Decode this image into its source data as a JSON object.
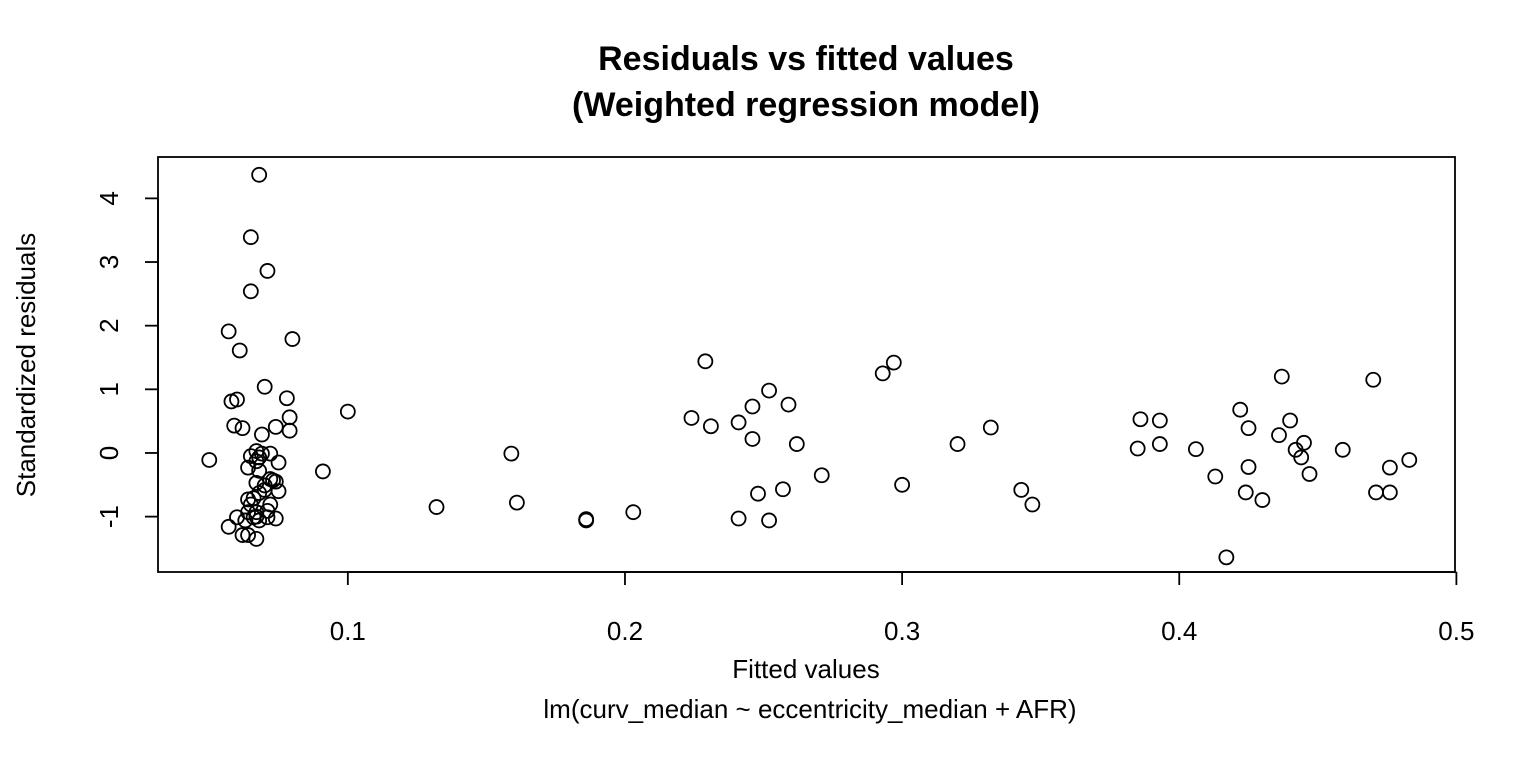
{
  "chart_data": {
    "type": "scatter",
    "title": "Residuals vs fitted values",
    "subtitle": "(Weighted regression model)",
    "xlabel": "Fitted values",
    "xsublabel": "lm(curv_median ~ eccentricity_median + AFR)",
    "ylabel": "Standardized residuals",
    "xlim": [
      0.0315,
      0.4995
    ],
    "ylim": [
      -1.87,
      4.65
    ],
    "x_ticks": [
      0.1,
      0.2,
      0.3,
      0.4,
      0.5
    ],
    "x_tick_labels": [
      "0.1",
      "0.2",
      "0.3",
      "0.4",
      "0.5"
    ],
    "y_ticks": [
      -1,
      0,
      1,
      2,
      3,
      4
    ],
    "y_tick_labels": [
      "-1",
      "0",
      "1",
      "2",
      "3",
      "4"
    ],
    "grid": false,
    "legend": "none",
    "marker": "open-circle",
    "points": [
      {
        "x": 0.05,
        "y": -0.11
      },
      {
        "x": 0.057,
        "y": -1.16
      },
      {
        "x": 0.057,
        "y": 1.91
      },
      {
        "x": 0.058,
        "y": 0.81
      },
      {
        "x": 0.059,
        "y": 0.43
      },
      {
        "x": 0.06,
        "y": 0.84
      },
      {
        "x": 0.06,
        "y": -1.01
      },
      {
        "x": 0.061,
        "y": 1.61
      },
      {
        "x": 0.062,
        "y": -1.29
      },
      {
        "x": 0.062,
        "y": 0.39
      },
      {
        "x": 0.063,
        "y": -1.06
      },
      {
        "x": 0.064,
        "y": -0.23
      },
      {
        "x": 0.064,
        "y": -1.29
      },
      {
        "x": 0.064,
        "y": -0.73
      },
      {
        "x": 0.064,
        "y": -0.93
      },
      {
        "x": 0.065,
        "y": 3.39
      },
      {
        "x": 0.065,
        "y": -0.05
      },
      {
        "x": 0.065,
        "y": -0.81
      },
      {
        "x": 0.065,
        "y": 2.54
      },
      {
        "x": 0.066,
        "y": -0.71
      },
      {
        "x": 0.066,
        "y": -1.01
      },
      {
        "x": 0.067,
        "y": -0.13
      },
      {
        "x": 0.067,
        "y": -1.0
      },
      {
        "x": 0.067,
        "y": -0.93
      },
      {
        "x": 0.067,
        "y": -1.35
      },
      {
        "x": 0.067,
        "y": -0.47
      },
      {
        "x": 0.067,
        "y": 0.03
      },
      {
        "x": 0.068,
        "y": -0.28
      },
      {
        "x": 0.068,
        "y": -0.63
      },
      {
        "x": 0.068,
        "y": 4.37
      },
      {
        "x": 0.068,
        "y": -1.06
      },
      {
        "x": 0.068,
        "y": -0.07
      },
      {
        "x": 0.069,
        "y": -0.01
      },
      {
        "x": 0.069,
        "y": 0.29
      },
      {
        "x": 0.07,
        "y": -0.51
      },
      {
        "x": 0.07,
        "y": -0.58
      },
      {
        "x": 0.07,
        "y": 1.04
      },
      {
        "x": 0.071,
        "y": 2.86
      },
      {
        "x": 0.071,
        "y": -0.91
      },
      {
        "x": 0.071,
        "y": -1.01
      },
      {
        "x": 0.072,
        "y": -0.01
      },
      {
        "x": 0.072,
        "y": -0.81
      },
      {
        "x": 0.072,
        "y": -0.41
      },
      {
        "x": 0.073,
        "y": -0.43
      },
      {
        "x": 0.074,
        "y": 0.41
      },
      {
        "x": 0.074,
        "y": -0.45
      },
      {
        "x": 0.074,
        "y": -1.03
      },
      {
        "x": 0.075,
        "y": -0.6
      },
      {
        "x": 0.075,
        "y": -0.15
      },
      {
        "x": 0.078,
        "y": 0.86
      },
      {
        "x": 0.079,
        "y": 0.56
      },
      {
        "x": 0.079,
        "y": 0.35
      },
      {
        "x": 0.08,
        "y": 1.79
      },
      {
        "x": 0.091,
        "y": -0.29
      },
      {
        "x": 0.1,
        "y": 0.65
      },
      {
        "x": 0.132,
        "y": -0.85
      },
      {
        "x": 0.159,
        "y": -0.01
      },
      {
        "x": 0.161,
        "y": -0.78
      },
      {
        "x": 0.186,
        "y": -1.04
      },
      {
        "x": 0.186,
        "y": -1.06
      },
      {
        "x": 0.203,
        "y": -0.93
      },
      {
        "x": 0.224,
        "y": 0.55
      },
      {
        "x": 0.229,
        "y": 1.44
      },
      {
        "x": 0.231,
        "y": 0.42
      },
      {
        "x": 0.241,
        "y": 0.48
      },
      {
        "x": 0.241,
        "y": -1.03
      },
      {
        "x": 0.246,
        "y": 0.22
      },
      {
        "x": 0.246,
        "y": 0.73
      },
      {
        "x": 0.248,
        "y": -0.64
      },
      {
        "x": 0.252,
        "y": 0.98
      },
      {
        "x": 0.252,
        "y": -1.06
      },
      {
        "x": 0.257,
        "y": -0.57
      },
      {
        "x": 0.259,
        "y": 0.76
      },
      {
        "x": 0.262,
        "y": 0.14
      },
      {
        "x": 0.271,
        "y": -0.35
      },
      {
        "x": 0.293,
        "y": 1.25
      },
      {
        "x": 0.297,
        "y": 1.42
      },
      {
        "x": 0.3,
        "y": -0.5
      },
      {
        "x": 0.32,
        "y": 0.14
      },
      {
        "x": 0.332,
        "y": 0.4
      },
      {
        "x": 0.343,
        "y": -0.58
      },
      {
        "x": 0.347,
        "y": -0.81
      },
      {
        "x": 0.385,
        "y": 0.07
      },
      {
        "x": 0.386,
        "y": 0.53
      },
      {
        "x": 0.393,
        "y": 0.51
      },
      {
        "x": 0.393,
        "y": 0.14
      },
      {
        "x": 0.406,
        "y": 0.06
      },
      {
        "x": 0.413,
        "y": -0.37
      },
      {
        "x": 0.417,
        "y": -1.64
      },
      {
        "x": 0.422,
        "y": 0.68
      },
      {
        "x": 0.424,
        "y": -0.62
      },
      {
        "x": 0.425,
        "y": -0.22
      },
      {
        "x": 0.425,
        "y": 0.39
      },
      {
        "x": 0.43,
        "y": -0.74
      },
      {
        "x": 0.436,
        "y": 0.28
      },
      {
        "x": 0.437,
        "y": 1.2
      },
      {
        "x": 0.44,
        "y": 0.51
      },
      {
        "x": 0.442,
        "y": 0.05
      },
      {
        "x": 0.444,
        "y": -0.07
      },
      {
        "x": 0.445,
        "y": 0.16
      },
      {
        "x": 0.447,
        "y": -0.33
      },
      {
        "x": 0.459,
        "y": 0.05
      },
      {
        "x": 0.47,
        "y": 1.15
      },
      {
        "x": 0.471,
        "y": -0.62
      },
      {
        "x": 0.476,
        "y": -0.62
      },
      {
        "x": 0.476,
        "y": -0.23
      },
      {
        "x": 0.483,
        "y": -0.11
      }
    ]
  }
}
